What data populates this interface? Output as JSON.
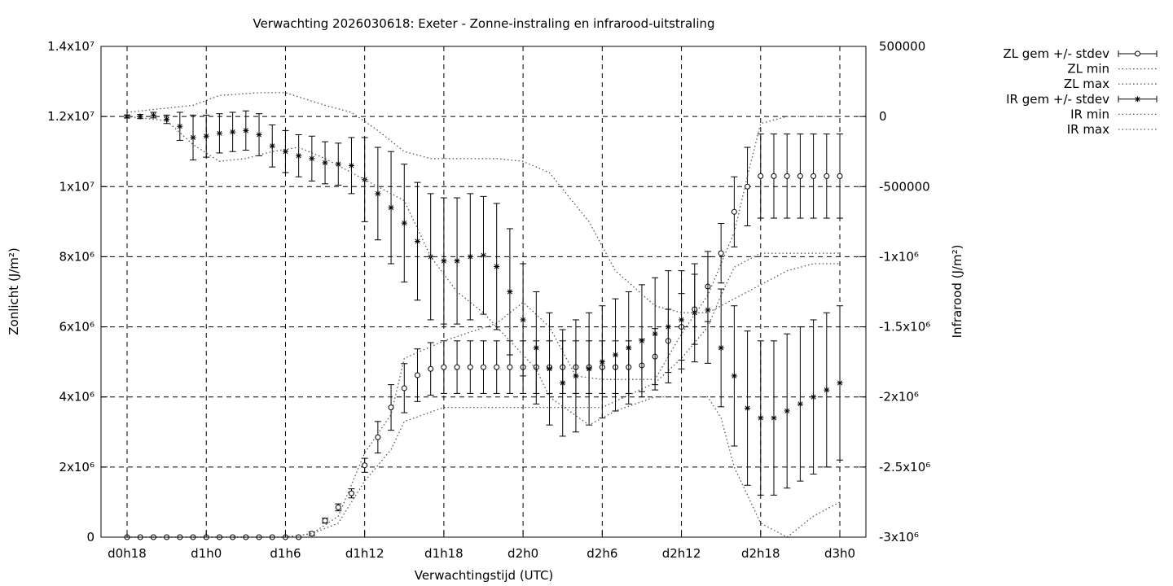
{
  "chart_data": {
    "type": "line",
    "title": "Verwachting 2026030618: Exeter - Zonne-instraling en infrarood-uitstraling",
    "xlabel": "Verwachtingstijd (UTC)",
    "ylabel_left": "Zonlicht (J/m²)",
    "ylabel_right": "Infrarood (J/m²)",
    "x_ticks": [
      "d0h18",
      "d1h0",
      "d1h6",
      "d1h12",
      "d1h18",
      "d2h0",
      "d2h6",
      "d2h12",
      "d2h18",
      "d3h0"
    ],
    "x_hours": [
      0,
      54
    ],
    "y_left": {
      "range": [
        0,
        14000000
      ],
      "tick_labels": [
        "0",
        "2x10⁶",
        "4x10⁶",
        "6x10⁶",
        "8x10⁶",
        "1x10⁷",
        "1.2x10⁷",
        "1.4x10⁷"
      ]
    },
    "y_right": {
      "range": [
        -3000000,
        500000
      ],
      "tick_labels": [
        "-3x10⁶",
        "-2.5x10⁶",
        "-2x10⁶",
        "-1.5x10⁶",
        "-1x10⁶",
        "-500000",
        "0",
        "500000"
      ]
    },
    "grid": true,
    "legend_position": "outside-top-right",
    "legend": [
      "ZL gem +/- stdev",
      "ZL min",
      "ZL max",
      "IR gem +/- stdev",
      "IR min",
      "IR max"
    ],
    "series": [
      {
        "name": "ZL gem +/- stdev",
        "axis": "left",
        "marker": "circle",
        "errorbars": true,
        "x": [
          0,
          1,
          2,
          3,
          4,
          5,
          6,
          7,
          8,
          9,
          10,
          11,
          12,
          13,
          14,
          15,
          16,
          17,
          18,
          19,
          20,
          21,
          22,
          23,
          24,
          25,
          26,
          27,
          28,
          29,
          30,
          31,
          32,
          33,
          34,
          35,
          36,
          37,
          38,
          39,
          40,
          41,
          42,
          43,
          44,
          45,
          46,
          47,
          48,
          49,
          50,
          51,
          52,
          53,
          54
        ],
        "y": [
          0,
          0,
          0,
          0,
          0,
          0,
          0,
          0,
          0,
          0,
          0,
          0,
          0,
          0,
          100000,
          470000,
          850000,
          1250000,
          2050000,
          2850000,
          3700000,
          4250000,
          4620000,
          4800000,
          4850000,
          4850000,
          4850000,
          4850000,
          4850000,
          4850000,
          4850000,
          4850000,
          4850000,
          4850000,
          4850000,
          4850000,
          4850000,
          4850000,
          4850000,
          4900000,
          5150000,
          5600000,
          6000000,
          6500000,
          7150000,
          8100000,
          9280000,
          10000000,
          10300000,
          10300000,
          10300000,
          10300000,
          10300000,
          10300000,
          10300000
        ],
        "stdev": [
          0,
          0,
          0,
          0,
          0,
          0,
          0,
          0,
          0,
          0,
          0,
          0,
          0,
          0,
          50000,
          70000,
          100000,
          130000,
          200000,
          450000,
          650000,
          700000,
          750000,
          750000,
          750000,
          750000,
          750000,
          750000,
          750000,
          750000,
          750000,
          750000,
          750000,
          750000,
          750000,
          750000,
          750000,
          750000,
          750000,
          750000,
          800000,
          900000,
          950000,
          1000000,
          1000000,
          850000,
          1000000,
          1120000,
          1200000,
          1200000,
          1200000,
          1200000,
          1200000,
          1200000,
          1200000
        ]
      },
      {
        "name": "ZL min",
        "axis": "left",
        "style": "dotted",
        "x": [
          0,
          6,
          12,
          14,
          16,
          18,
          20,
          21,
          24,
          30,
          33,
          36,
          40,
          42,
          44,
          45,
          46,
          48,
          50,
          54
        ],
        "y": [
          0,
          0,
          0,
          100000,
          400000,
          1600000,
          2500000,
          3300000,
          3700000,
          3700000,
          3700000,
          3700000,
          4400000,
          5100000,
          6000000,
          6900000,
          7700000,
          8100000,
          8100000,
          8100000
        ]
      },
      {
        "name": "ZL max",
        "axis": "left",
        "style": "dotted",
        "x": [
          0,
          6,
          12,
          14,
          16,
          18,
          20,
          21,
          24,
          28,
          30,
          32,
          34,
          36,
          38,
          40,
          42,
          44,
          46,
          47,
          48,
          50,
          52,
          54
        ],
        "y": [
          0,
          0,
          0,
          100000,
          600000,
          2400000,
          3500000,
          5100000,
          5600000,
          6100000,
          6700000,
          6000000,
          4600000,
          4500000,
          4500000,
          4500000,
          5800000,
          6900000,
          8700000,
          10300000,
          11800000,
          12000000,
          12000000,
          12000000
        ]
      },
      {
        "name": "IR gem +/- stdev",
        "axis": "right",
        "marker": "star",
        "errorbars": true,
        "x": [
          0,
          1,
          2,
          3,
          4,
          5,
          6,
          7,
          8,
          9,
          10,
          11,
          12,
          13,
          14,
          15,
          16,
          17,
          18,
          19,
          20,
          21,
          22,
          23,
          24,
          25,
          26,
          27,
          28,
          29,
          30,
          31,
          32,
          33,
          34,
          35,
          36,
          37,
          38,
          39,
          40,
          41,
          42,
          43,
          44,
          45,
          46,
          47,
          48,
          49,
          50,
          51,
          52,
          53,
          54
        ],
        "y": [
          0,
          0,
          10000,
          -20000,
          -70000,
          -150000,
          -140000,
          -120000,
          -110000,
          -100000,
          -130000,
          -210000,
          -250000,
          -280000,
          -300000,
          -330000,
          -340000,
          -350000,
          -450000,
          -550000,
          -650000,
          -760000,
          -890000,
          -1000000,
          -1030000,
          -1030000,
          -1000000,
          -990000,
          -1070000,
          -1250000,
          -1450000,
          -1650000,
          -1800000,
          -1900000,
          -1850000,
          -1800000,
          -1750000,
          -1700000,
          -1650000,
          -1600000,
          -1550000,
          -1500000,
          -1450000,
          -1400000,
          -1380000,
          -1650000,
          -1850000,
          -2080000,
          -2150000,
          -2150000,
          -2100000,
          -2050000,
          -2000000,
          -1950000,
          -1900000
        ],
        "stdev": [
          10000,
          15000,
          20000,
          30000,
          100000,
          160000,
          150000,
          140000,
          140000,
          140000,
          150000,
          150000,
          150000,
          150000,
          160000,
          150000,
          150000,
          200000,
          300000,
          330000,
          400000,
          420000,
          420000,
          450000,
          450000,
          450000,
          450000,
          420000,
          450000,
          450000,
          400000,
          400000,
          400000,
          380000,
          400000,
          400000,
          400000,
          400000,
          400000,
          400000,
          400000,
          400000,
          350000,
          350000,
          380000,
          420000,
          500000,
          550000,
          550000,
          550000,
          550000,
          550000,
          550000,
          550000,
          550000
        ]
      },
      {
        "name": "IR min",
        "axis": "right",
        "style": "dotted",
        "x": [
          0,
          3,
          5,
          7,
          9,
          11,
          13,
          15,
          17,
          19,
          21,
          23,
          25,
          27,
          29,
          31,
          32,
          35,
          37,
          40,
          44,
          45,
          46,
          48,
          50,
          52,
          54
        ],
        "y": [
          0,
          -30000,
          -200000,
          -320000,
          -300000,
          -250000,
          -220000,
          -300000,
          -400000,
          -500000,
          -600000,
          -1000000,
          -1250000,
          -1400000,
          -1600000,
          -1800000,
          -2000000,
          -2200000,
          -2100000,
          -2000000,
          -2000000,
          -2150000,
          -2500000,
          -2900000,
          -3000000,
          -2850000,
          -2750000
        ]
      },
      {
        "name": "IR max",
        "axis": "right",
        "style": "dotted",
        "x": [
          0,
          3,
          5,
          7,
          10,
          12,
          15,
          17,
          19,
          21,
          23,
          28,
          30,
          32,
          35,
          37,
          40,
          42,
          44,
          46,
          48,
          50,
          52,
          54
        ],
        "y": [
          30000,
          60000,
          80000,
          150000,
          170000,
          170000,
          80000,
          30000,
          -100000,
          -250000,
          -300000,
          -300000,
          -320000,
          -400000,
          -750000,
          -1100000,
          -1350000,
          -1400000,
          -1400000,
          -1300000,
          -1200000,
          -1100000,
          -1050000,
          -1050000
        ]
      }
    ]
  }
}
